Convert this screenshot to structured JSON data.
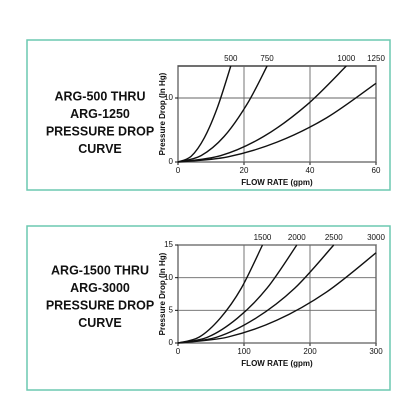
{
  "chart_data": [
    {
      "type": "line",
      "title": [
        "ARG-500 THRU",
        "ARG-1250",
        "PRESSURE DROP",
        "CURVE"
      ],
      "x_label": "FLOW RATE (gpm)",
      "y_label": "Pressure Drop (In Hg)",
      "xlim": [
        0,
        60
      ],
      "xticks": [
        0,
        20,
        40,
        60
      ],
      "ylim": [
        0,
        15
      ],
      "yticks": [
        0,
        10
      ],
      "grid": true,
      "color": "#111111",
      "series": [
        {
          "name": "500",
          "x": [
            0,
            4,
            8,
            12,
            16
          ],
          "values": [
            0,
            0.9,
            3.8,
            8.6,
            15
          ]
        },
        {
          "name": "750",
          "x": [
            0,
            7,
            14,
            21,
            27
          ],
          "values": [
            0,
            1,
            4,
            9.1,
            15
          ]
        },
        {
          "name": "1000",
          "x": [
            0,
            13,
            26,
            39,
            51
          ],
          "values": [
            0,
            1,
            4,
            8.9,
            15
          ]
        },
        {
          "name": "1250",
          "x": [
            0,
            15,
            30,
            45,
            60
          ],
          "values": [
            0,
            0.8,
            3.1,
            6.9,
            12.3
          ]
        }
      ]
    },
    {
      "type": "line",
      "title": [
        "ARG-1500 THRU",
        "ARG-3000",
        "PRESSURE DROP",
        "CURVE"
      ],
      "x_label": "FLOW RATE (gpm)",
      "y_label": "Pressure Drop (In Hg)",
      "xlim": [
        0,
        300
      ],
      "xticks": [
        0,
        100,
        200,
        300
      ],
      "ylim": [
        0,
        15
      ],
      "yticks": [
        0,
        5,
        10,
        15
      ],
      "grid": true,
      "color": "#111111",
      "series": [
        {
          "name": "1500",
          "x": [
            0,
            32,
            64,
            96,
            128
          ],
          "values": [
            0,
            0.9,
            3.8,
            8.4,
            15
          ]
        },
        {
          "name": "2000",
          "x": [
            0,
            45,
            90,
            135,
            180
          ],
          "values": [
            0,
            0.9,
            3.8,
            8.4,
            15
          ]
        },
        {
          "name": "2500",
          "x": [
            0,
            59,
            118,
            177,
            236
          ],
          "values": [
            0,
            0.9,
            3.8,
            8.4,
            15
          ]
        },
        {
          "name": "3000",
          "x": [
            0,
            75,
            150,
            225,
            300
          ],
          "values": [
            0,
            0.9,
            3.5,
            7.8,
            13.8
          ]
        }
      ]
    }
  ]
}
